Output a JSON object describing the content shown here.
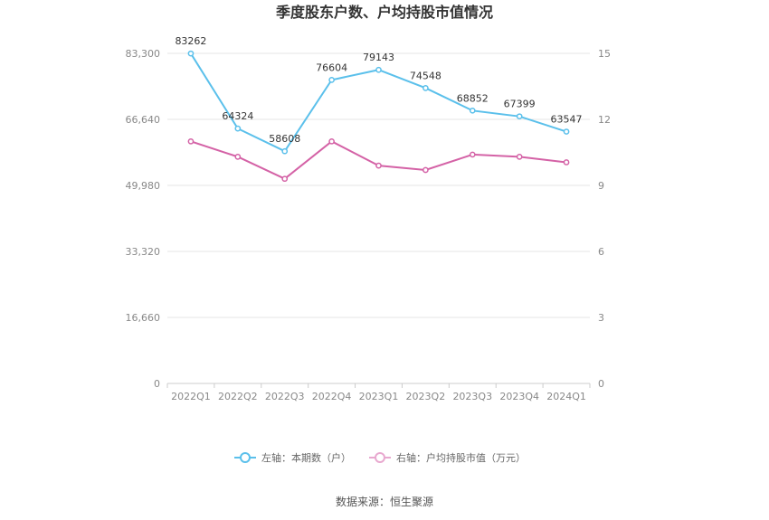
{
  "chart_data": {
    "type": "line",
    "title": "季度股东户数、户均持股市值情况",
    "categories": [
      "2022Q1",
      "2022Q2",
      "2022Q3",
      "2022Q4",
      "2023Q1",
      "2023Q2",
      "2023Q3",
      "2023Q4",
      "2024Q1"
    ],
    "left_axis": {
      "ticks": [
        "0",
        "16,660",
        "33,320",
        "49,980",
        "66,640",
        "83,300"
      ],
      "min": 0,
      "max": 83300
    },
    "right_axis": {
      "ticks": [
        "0",
        "3",
        "6",
        "9",
        "12",
        "15"
      ],
      "min": 0,
      "max": 15
    },
    "series": [
      {
        "name": "左轴：本期数（户）",
        "axis": "left",
        "color": "#5bc0eb",
        "values": [
          83262,
          64324,
          58608,
          76604,
          79143,
          74548,
          68852,
          67399,
          63547
        ],
        "labels": [
          "83262",
          "64324",
          "58608",
          "76604",
          "79143",
          "74548",
          "68852",
          "67399",
          "63547"
        ]
      },
      {
        "name": "右轴：户均持股市值（万元）",
        "axis": "right",
        "color": "#d462a6",
        "values": [
          11.0,
          10.3,
          9.3,
          11.0,
          9.9,
          9.7,
          10.4,
          10.3,
          10.05
        ]
      }
    ],
    "grid": true,
    "legend_position": "bottom-center"
  },
  "source": "数据来源：恒生聚源"
}
